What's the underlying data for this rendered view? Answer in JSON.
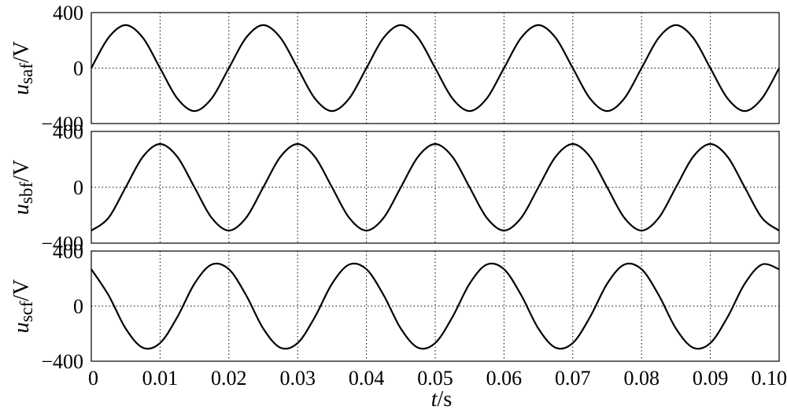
{
  "chart_data": [
    {
      "type": "line",
      "ylabel": {
        "var": "u",
        "sub": "saf",
        "unit": "/V"
      },
      "ylim": [
        -400,
        400
      ],
      "yticks": [
        400,
        0,
        -400
      ],
      "ytick_labels": [
        "400",
        "0",
        "−400"
      ],
      "xlim": [
        0,
        0.1
      ],
      "grid": true,
      "series": [
        {
          "x": [
            0,
            0.0025,
            0.005,
            0.0075,
            0.01,
            0.0125,
            0.015,
            0.0175,
            0.02,
            0.0225,
            0.025,
            0.0275,
            0.03,
            0.0325,
            0.035,
            0.0375,
            0.04,
            0.0425,
            0.045,
            0.0475,
            0.05,
            0.0525,
            0.055,
            0.0575,
            0.06,
            0.0625,
            0.065,
            0.0675,
            0.07,
            0.0725,
            0.075,
            0.0775,
            0.08,
            0.0825,
            0.085,
            0.0875,
            0.09,
            0.0925,
            0.095,
            0.0975,
            0.1
          ],
          "y": [
            0,
            219,
            310,
            219,
            0,
            -219,
            -310,
            -219,
            0,
            219,
            310,
            219,
            0,
            -219,
            -310,
            -219,
            0,
            219,
            310,
            219,
            0,
            -219,
            -310,
            -219,
            0,
            219,
            310,
            219,
            0,
            -219,
            -310,
            -219,
            0,
            219,
            310,
            219,
            0,
            -219,
            -310,
            -219,
            0
          ]
        }
      ]
    },
    {
      "type": "line",
      "ylabel": {
        "var": "u",
        "sub": "sbf",
        "unit": "/V"
      },
      "ylim": [
        -400,
        400
      ],
      "yticks": [
        400,
        0,
        -400
      ],
      "ytick_labels": [
        "400",
        "0",
        "−400"
      ],
      "xlim": [
        0,
        0.1
      ],
      "grid": true,
      "series": [
        {
          "x": [
            0,
            0.0025,
            0.005,
            0.0075,
            0.01,
            0.0125,
            0.015,
            0.0175,
            0.02,
            0.0225,
            0.025,
            0.0275,
            0.03,
            0.0325,
            0.035,
            0.0375,
            0.04,
            0.0425,
            0.045,
            0.0475,
            0.05,
            0.0525,
            0.055,
            0.0575,
            0.06,
            0.0625,
            0.065,
            0.0675,
            0.07,
            0.0725,
            0.075,
            0.0775,
            0.08,
            0.0825,
            0.085,
            0.0875,
            0.09,
            0.0925,
            0.095,
            0.0975,
            0.1
          ],
          "y": [
            -310,
            -219,
            0,
            219,
            310,
            219,
            0,
            -219,
            -310,
            -219,
            0,
            219,
            310,
            219,
            0,
            -219,
            -310,
            -219,
            0,
            219,
            310,
            219,
            0,
            -219,
            -310,
            -219,
            0,
            219,
            310,
            219,
            0,
            -219,
            -310,
            -219,
            0,
            219,
            310,
            219,
            0,
            -219,
            -310
          ]
        }
      ]
    },
    {
      "type": "line",
      "ylabel": {
        "var": "u",
        "sub": "scf",
        "unit": "/V"
      },
      "ylim": [
        -400,
        400
      ],
      "yticks": [
        400,
        0,
        -400
      ],
      "ytick_labels": [
        "400",
        "0",
        "−400"
      ],
      "xlim": [
        0,
        0.1
      ],
      "xticks": [
        0,
        0.01,
        0.02,
        0.03,
        0.04,
        0.05,
        0.06,
        0.07,
        0.08,
        0.09,
        0.1
      ],
      "xtick_labels": [
        "0",
        "0.01",
        "0.02",
        "0.03",
        "0.04",
        "0.05",
        "0.06",
        "0.07",
        "0.08",
        "0.09",
        "0.10"
      ],
      "xlabel": {
        "var": "t",
        "unit": "/s"
      },
      "grid": true,
      "series": [
        {
          "x": [
            0,
            0.0025,
            0.005,
            0.0075,
            0.01,
            0.0125,
            0.015,
            0.0175,
            0.02,
            0.0225,
            0.025,
            0.0275,
            0.03,
            0.0325,
            0.035,
            0.0375,
            0.04,
            0.0425,
            0.045,
            0.0475,
            0.05,
            0.0525,
            0.055,
            0.0575,
            0.06,
            0.0625,
            0.065,
            0.0675,
            0.07,
            0.0725,
            0.075,
            0.0775,
            0.08,
            0.0825,
            0.085,
            0.0875,
            0.09,
            0.0925,
            0.095,
            0.0975,
            0.1
          ],
          "y": [
            268,
            80,
            -163,
            -302,
            -268,
            -80,
            163,
            302,
            268,
            80,
            -163,
            -302,
            -268,
            -80,
            163,
            302,
            268,
            80,
            -163,
            -302,
            -268,
            -80,
            163,
            302,
            268,
            80,
            -163,
            -302,
            -268,
            -80,
            163,
            302,
            268,
            80,
            -163,
            -302,
            -268,
            -80,
            163,
            302,
            268
          ]
        }
      ]
    }
  ]
}
